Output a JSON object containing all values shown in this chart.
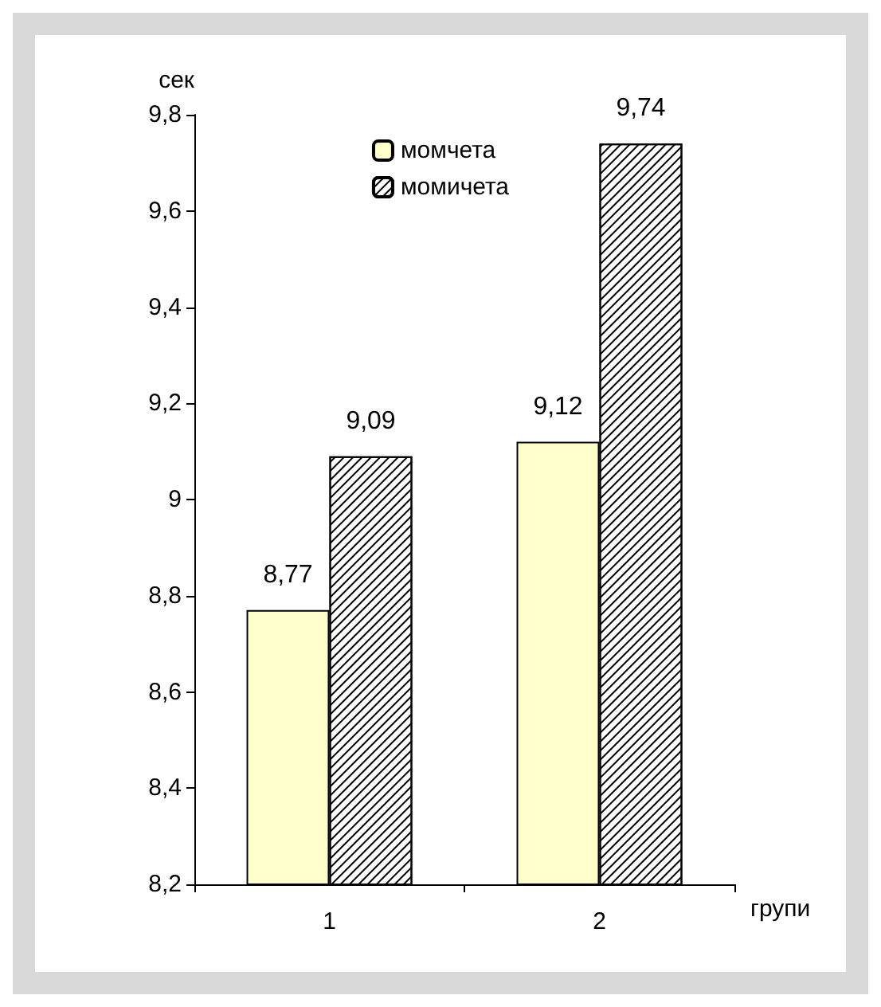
{
  "chart_data": {
    "type": "bar",
    "ylabel": "сек",
    "xlabel": "групи",
    "categories": [
      "1",
      "2"
    ],
    "series": [
      {
        "name": "момчета",
        "color": "#ffffcc",
        "values": [
          8.77,
          9.12
        ],
        "value_labels": [
          "8,77",
          "9,12"
        ]
      },
      {
        "name": "момичета",
        "color": "#ffffff",
        "values": [
          9.09,
          9.74
        ],
        "value_labels": [
          "9,09",
          "9,74"
        ]
      }
    ],
    "ylim": [
      8.2,
      9.8
    ],
    "yticks": [
      {
        "value": 8.2,
        "label": "8,2"
      },
      {
        "value": 8.4,
        "label": "8,4"
      },
      {
        "value": 8.6,
        "label": "8,6"
      },
      {
        "value": 8.8,
        "label": "8,8"
      },
      9,
      {
        "value": 9.2,
        "label": "9,2"
      },
      {
        "value": 9.4,
        "label": "9,4"
      },
      {
        "value": 9.6,
        "label": "9,6"
      },
      {
        "value": 9.8,
        "label": "9,8"
      }
    ],
    "grid": false,
    "legend": "top"
  }
}
